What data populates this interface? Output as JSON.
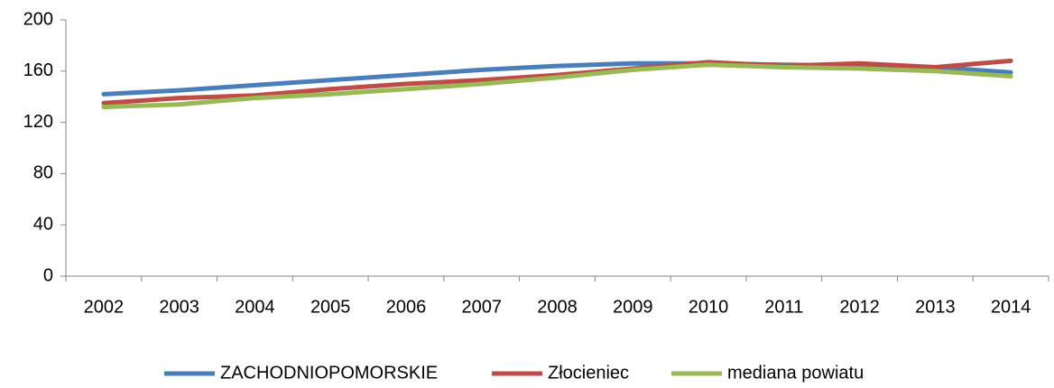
{
  "chart_data": {
    "type": "line",
    "categories": [
      "2002",
      "2003",
      "2004",
      "2005",
      "2006",
      "2007",
      "2008",
      "2009",
      "2010",
      "2011",
      "2012",
      "2013",
      "2014"
    ],
    "series": [
      {
        "name": "ZACHODNIOPOMORSKIE",
        "color": "#4a7ebb",
        "values": [
          142,
          145,
          149,
          153,
          157,
          161,
          164,
          166,
          166,
          165,
          164,
          163,
          159
        ]
      },
      {
        "name": "Złocieniec",
        "color": "#be4b48",
        "values": [
          135,
          139,
          141,
          146,
          150,
          153,
          157,
          162,
          167,
          164,
          166,
          163,
          168
        ]
      },
      {
        "name": "mediana powiatu",
        "color": "#98b954",
        "values": [
          132,
          134,
          139,
          142,
          146,
          150,
          155,
          161,
          165,
          163,
          162,
          160,
          156
        ]
      }
    ],
    "ylim": [
      0,
      200
    ],
    "yticks": [
      0,
      40,
      80,
      120,
      160,
      200
    ],
    "grid": false,
    "legend": "bottom"
  }
}
